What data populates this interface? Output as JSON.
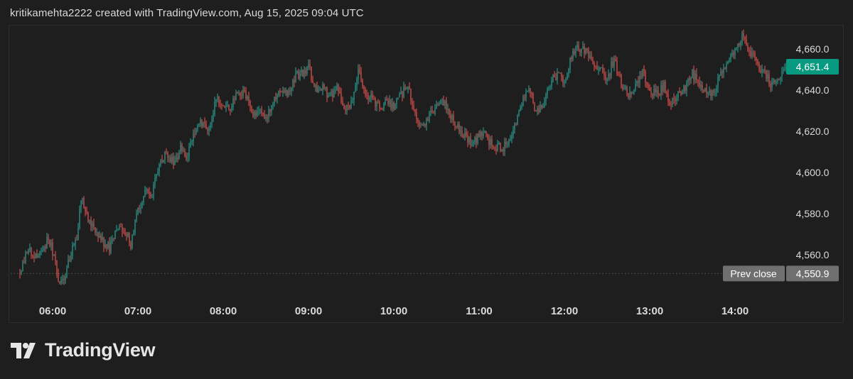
{
  "attribution": "kritikamehta2222 created with TradingView.com, Aug 15, 2025 09:04 UTC",
  "brand": {
    "name": "TradingView",
    "logo_icon": "tradingview-logo-icon"
  },
  "colors": {
    "background": "#1e1e1e",
    "up": "#26a69a",
    "down": "#ef5350",
    "current_label": "#089981",
    "prev_close_label": "#6f6f6f",
    "text": "#d9d9d9"
  },
  "chart_data": {
    "type": "candlestick",
    "title": "",
    "xlabel": "",
    "ylabel": "",
    "x_ticks": [
      "06:00",
      "07:00",
      "08:00",
      "09:00",
      "10:00",
      "11:00",
      "12:00",
      "13:00",
      "14:00"
    ],
    "y_ticks": [
      "4,560.0",
      "4,580.0",
      "4,600.0",
      "4,620.0",
      "4,640.0",
      "4,660.0"
    ],
    "y_tick_values": [
      4560,
      4580,
      4600,
      4620,
      4640,
      4660
    ],
    "ylim": [
      4537,
      4671
    ],
    "time_range": [
      "05:37",
      "14:36"
    ],
    "grid": false,
    "current_price": {
      "value": 4651.4,
      "label": "4,651.4"
    },
    "prev_close": {
      "value": 4550.9,
      "label": "4,550.9",
      "title": "Prev close"
    },
    "price_path": [
      [
        "05:37",
        4551
      ],
      [
        "05:42",
        4562
      ],
      [
        "05:50",
        4559
      ],
      [
        "05:57",
        4568
      ],
      [
        "06:02",
        4557
      ],
      [
        "06:05",
        4545
      ],
      [
        "06:10",
        4553
      ],
      [
        "06:17",
        4569
      ],
      [
        "06:20",
        4588
      ],
      [
        "06:25",
        4576
      ],
      [
        "06:30",
        4573
      ],
      [
        "06:35",
        4567
      ],
      [
        "06:40",
        4563
      ],
      [
        "06:45",
        4572
      ],
      [
        "06:50",
        4573
      ],
      [
        "06:55",
        4565
      ],
      [
        "07:00",
        4582
      ],
      [
        "07:05",
        4590
      ],
      [
        "07:10",
        4590
      ],
      [
        "07:15",
        4604
      ],
      [
        "07:20",
        4610
      ],
      [
        "07:25",
        4605
      ],
      [
        "07:30",
        4611
      ],
      [
        "07:35",
        4608
      ],
      [
        "07:40",
        4621
      ],
      [
        "07:45",
        4624
      ],
      [
        "07:50",
        4620
      ],
      [
        "07:55",
        4636
      ],
      [
        "08:00",
        4634
      ],
      [
        "08:05",
        4632
      ],
      [
        "08:10",
        4638
      ],
      [
        "08:15",
        4640
      ],
      [
        "08:20",
        4628
      ],
      [
        "08:25",
        4630
      ],
      [
        "08:30",
        4627
      ],
      [
        "08:35",
        4635
      ],
      [
        "08:40",
        4641
      ],
      [
        "08:45",
        4637
      ],
      [
        "08:50",
        4646
      ],
      [
        "08:55",
        4648
      ],
      [
        "09:00",
        4652
      ],
      [
        "09:05",
        4640
      ],
      [
        "09:10",
        4642
      ],
      [
        "09:15",
        4636
      ],
      [
        "09:20",
        4642
      ],
      [
        "09:25",
        4632
      ],
      [
        "09:30",
        4633
      ],
      [
        "09:35",
        4649
      ],
      [
        "09:40",
        4638
      ],
      [
        "09:45",
        4635
      ],
      [
        "09:50",
        4632
      ],
      [
        "09:55",
        4634
      ],
      [
        "10:00",
        4632
      ],
      [
        "10:05",
        4638
      ],
      [
        "10:10",
        4642
      ],
      [
        "10:15",
        4628
      ],
      [
        "10:20",
        4623
      ],
      [
        "10:25",
        4627
      ],
      [
        "10:30",
        4631
      ],
      [
        "10:35",
        4634
      ],
      [
        "10:40",
        4628
      ],
      [
        "10:45",
        4622
      ],
      [
        "10:50",
        4618
      ],
      [
        "10:55",
        4612
      ],
      [
        "11:00",
        4619
      ],
      [
        "11:05",
        4618
      ],
      [
        "11:10",
        4612
      ],
      [
        "11:15",
        4612
      ],
      [
        "11:20",
        4613
      ],
      [
        "11:25",
        4621
      ],
      [
        "11:30",
        4634
      ],
      [
        "11:35",
        4640
      ],
      [
        "11:40",
        4630
      ],
      [
        "11:45",
        4634
      ],
      [
        "11:50",
        4644
      ],
      [
        "11:55",
        4648
      ],
      [
        "12:00",
        4644
      ],
      [
        "12:05",
        4656
      ],
      [
        "12:10",
        4661
      ],
      [
        "12:15",
        4658
      ],
      [
        "12:20",
        4654
      ],
      [
        "12:25",
        4650
      ],
      [
        "12:30",
        4645
      ],
      [
        "12:35",
        4656
      ],
      [
        "12:40",
        4642
      ],
      [
        "12:45",
        4638
      ],
      [
        "12:50",
        4641
      ],
      [
        "12:55",
        4649
      ],
      [
        "13:00",
        4640
      ],
      [
        "13:05",
        4638
      ],
      [
        "13:10",
        4642
      ],
      [
        "13:15",
        4633
      ],
      [
        "13:20",
        4638
      ],
      [
        "13:25",
        4642
      ],
      [
        "13:30",
        4648
      ],
      [
        "13:35",
        4644
      ],
      [
        "13:40",
        4640
      ],
      [
        "13:45",
        4639
      ],
      [
        "13:50",
        4648
      ],
      [
        "13:55",
        4655
      ],
      [
        "14:00",
        4658
      ],
      [
        "14:05",
        4666
      ],
      [
        "14:10",
        4660
      ],
      [
        "14:15",
        4653
      ],
      [
        "14:20",
        4649
      ],
      [
        "14:25",
        4643
      ],
      [
        "14:30",
        4646
      ],
      [
        "14:36",
        4651.4
      ]
    ]
  }
}
